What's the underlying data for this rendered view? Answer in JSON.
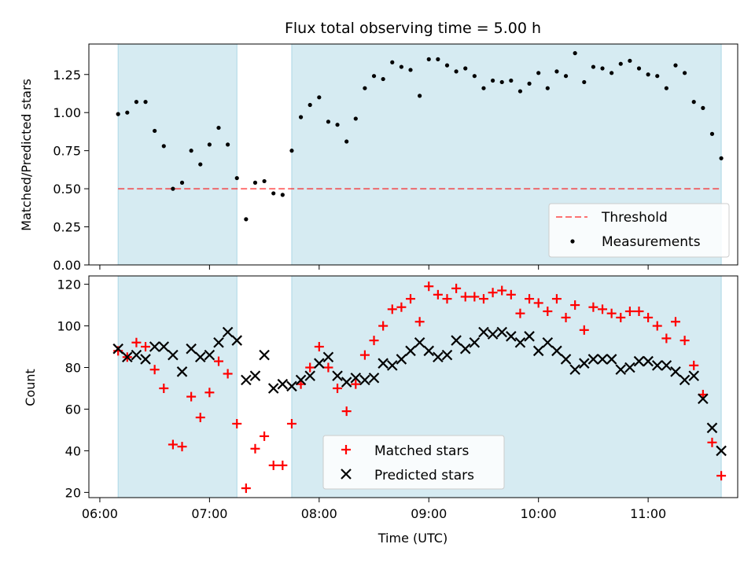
{
  "chart_data": [
    {
      "type": "scatter",
      "title": "Flux total observing time = 5.00 h",
      "ylabel": "Matched/Predicted stars",
      "xlabel": "",
      "xlim": [
        "06:00",
        "11:40"
      ],
      "ylim": [
        0,
        1.45
      ],
      "yticks": [
        "0.00",
        "0.25",
        "0.50",
        "0.75",
        "1.00",
        "1.25"
      ],
      "shaded_intervals": [
        [
          "06:10",
          "07:15"
        ],
        [
          "07:45",
          "11:40"
        ]
      ],
      "threshold": 0.5,
      "legend": {
        "position": "bottom-right",
        "entries": [
          "Threshold",
          "Measurements"
        ]
      },
      "series": [
        {
          "name": "Measurements",
          "color": "#000000",
          "x": [
            "06:10",
            "06:15",
            "06:20",
            "06:25",
            "06:30",
            "06:35",
            "06:40",
            "06:45",
            "06:50",
            "06:55",
            "07:00",
            "07:05",
            "07:10",
            "07:15",
            "07:20",
            "07:25",
            "07:30",
            "07:35",
            "07:40",
            "07:45",
            "07:50",
            "07:55",
            "08:00",
            "08:05",
            "08:10",
            "08:15",
            "08:20",
            "08:25",
            "08:30",
            "08:35",
            "08:40",
            "08:45",
            "08:50",
            "08:55",
            "09:00",
            "09:05",
            "09:10",
            "09:15",
            "09:20",
            "09:25",
            "09:30",
            "09:35",
            "09:40",
            "09:45",
            "09:50",
            "09:55",
            "10:00",
            "10:05",
            "10:10",
            "10:15",
            "10:20",
            "10:25",
            "10:30",
            "10:35",
            "10:40",
            "10:45",
            "10:50",
            "10:55",
            "11:00",
            "11:05",
            "11:10",
            "11:15",
            "11:20",
            "11:25",
            "11:30",
            "11:35",
            "11:40"
          ],
          "y": [
            0.99,
            1.0,
            1.07,
            1.07,
            0.88,
            0.78,
            0.5,
            0.54,
            0.75,
            0.66,
            0.79,
            0.9,
            0.79,
            0.57,
            0.3,
            0.54,
            0.55,
            0.47,
            0.46,
            0.75,
            0.97,
            1.05,
            1.1,
            0.94,
            0.92,
            0.81,
            0.96,
            1.16,
            1.24,
            1.22,
            1.33,
            1.3,
            1.28,
            1.11,
            1.35,
            1.35,
            1.31,
            1.27,
            1.29,
            1.24,
            1.16,
            1.21,
            1.2,
            1.21,
            1.14,
            1.19,
            1.26,
            1.16,
            1.27,
            1.24,
            1.39,
            1.2,
            1.3,
            1.29,
            1.26,
            1.32,
            1.34,
            1.29,
            1.25,
            1.24,
            1.16,
            1.31,
            1.26,
            1.07,
            1.03,
            0.86,
            0.7
          ]
        }
      ]
    },
    {
      "type": "scatter",
      "title": "",
      "ylabel": "Count",
      "xlabel": "Time (UTC)",
      "xlim": [
        "06:00",
        "11:40"
      ],
      "ylim": [
        20,
        120
      ],
      "xticks": [
        "06:00",
        "07:00",
        "08:00",
        "09:00",
        "10:00",
        "11:00"
      ],
      "yticks": [
        "20",
        "40",
        "60",
        "80",
        "100",
        "120"
      ],
      "shaded_intervals": [
        [
          "06:10",
          "07:15"
        ],
        [
          "07:45",
          "11:40"
        ]
      ],
      "legend": {
        "position": "bottom-center",
        "entries": [
          "Matched stars",
          "Predicted stars"
        ]
      },
      "series": [
        {
          "name": "Matched stars",
          "color": "#ff0000",
          "x": [
            "06:10",
            "06:15",
            "06:20",
            "06:25",
            "06:30",
            "06:35",
            "06:40",
            "06:45",
            "06:50",
            "06:55",
            "07:00",
            "07:05",
            "07:10",
            "07:15",
            "07:20",
            "07:25",
            "07:30",
            "07:35",
            "07:40",
            "07:45",
            "07:50",
            "07:55",
            "08:00",
            "08:05",
            "08:10",
            "08:15",
            "08:20",
            "08:25",
            "08:30",
            "08:35",
            "08:40",
            "08:45",
            "08:50",
            "08:55",
            "09:00",
            "09:05",
            "09:10",
            "09:15",
            "09:20",
            "09:25",
            "09:30",
            "09:35",
            "09:40",
            "09:45",
            "09:50",
            "09:55",
            "10:00",
            "10:05",
            "10:10",
            "10:15",
            "10:20",
            "10:25",
            "10:30",
            "10:35",
            "10:40",
            "10:45",
            "10:50",
            "10:55",
            "11:00",
            "11:05",
            "11:10",
            "11:15",
            "11:20",
            "11:25",
            "11:30",
            "11:35",
            "11:40"
          ],
          "y": [
            88,
            85,
            92,
            90,
            79,
            70,
            43,
            42,
            66,
            56,
            68,
            83,
            77,
            53,
            22,
            41,
            47,
            33,
            33,
            53,
            72,
            80,
            90,
            80,
            70,
            59,
            72,
            86,
            93,
            100,
            108,
            109,
            113,
            102,
            119,
            115,
            113,
            118,
            114,
            114,
            113,
            116,
            117,
            115,
            106,
            113,
            111,
            107,
            113,
            104,
            110,
            98,
            109,
            108,
            106,
            104,
            107,
            107,
            104,
            100,
            94,
            102,
            93,
            81,
            67,
            44,
            28
          ]
        },
        {
          "name": "Predicted stars",
          "color": "#000000",
          "x": [
            "06:10",
            "06:15",
            "06:20",
            "06:25",
            "06:30",
            "06:35",
            "06:40",
            "06:45",
            "06:50",
            "06:55",
            "07:00",
            "07:05",
            "07:10",
            "07:15",
            "07:20",
            "07:25",
            "07:30",
            "07:35",
            "07:40",
            "07:45",
            "07:50",
            "07:55",
            "08:00",
            "08:05",
            "08:10",
            "08:15",
            "08:20",
            "08:25",
            "08:30",
            "08:35",
            "08:40",
            "08:45",
            "08:50",
            "08:55",
            "09:00",
            "09:05",
            "09:10",
            "09:15",
            "09:20",
            "09:25",
            "09:30",
            "09:35",
            "09:40",
            "09:45",
            "09:50",
            "09:55",
            "10:00",
            "10:05",
            "10:10",
            "10:15",
            "10:20",
            "10:25",
            "10:30",
            "10:35",
            "10:40",
            "10:45",
            "10:50",
            "10:55",
            "11:00",
            "11:05",
            "11:10",
            "11:15",
            "11:20",
            "11:25",
            "11:30",
            "11:35",
            "11:40"
          ],
          "y": [
            89,
            85,
            86,
            84,
            90,
            90,
            86,
            78,
            89,
            85,
            86,
            92,
            97,
            93,
            74,
            76,
            86,
            70,
            72,
            71,
            74,
            76,
            82,
            85,
            76,
            73,
            75,
            74,
            75,
            82,
            81,
            84,
            88,
            92,
            88,
            85,
            86,
            93,
            89,
            92,
            97,
            96,
            97,
            95,
            92,
            95,
            88,
            92,
            88,
            84,
            79,
            82,
            84,
            84,
            84,
            79,
            80,
            83,
            83,
            81,
            81,
            78,
            74,
            76,
            65,
            51,
            40
          ]
        }
      ]
    }
  ]
}
